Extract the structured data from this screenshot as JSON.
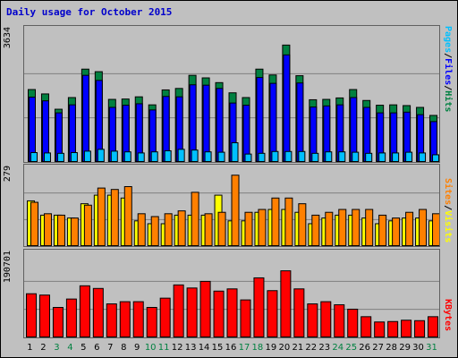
{
  "title": "Daily usage for October 2015",
  "colors": {
    "hits": "#008040",
    "files": "#0000ff",
    "pages": "#00c0ff",
    "visits": "#ffff00",
    "sites": "#ff8000",
    "kbytes": "#ff0000",
    "weekday_label": "#000000",
    "weekend_label": "#008040"
  },
  "chart_data": [
    {
      "type": "bar",
      "ymax_label": "3634",
      "ylim": [
        0,
        3634
      ],
      "legend_labels": [
        "Pages",
        "/",
        "Files",
        "/",
        "Hits"
      ],
      "categories": [
        "1",
        "2",
        "3",
        "4",
        "5",
        "6",
        "7",
        "8",
        "9",
        "10",
        "11",
        "12",
        "13",
        "14",
        "15",
        "16",
        "17",
        "18",
        "19",
        "20",
        "21",
        "22",
        "23",
        "24",
        "25",
        "26",
        "27",
        "28",
        "29",
        "30",
        "31"
      ],
      "weekend": [
        false,
        false,
        true,
        true,
        false,
        false,
        false,
        false,
        false,
        true,
        true,
        false,
        false,
        false,
        false,
        false,
        true,
        true,
        false,
        false,
        false,
        false,
        false,
        true,
        true,
        false,
        false,
        false,
        false,
        false,
        true
      ],
      "series": [
        {
          "name": "Hits",
          "values": [
            2000,
            1880,
            1460,
            1780,
            2560,
            2490,
            1730,
            1740,
            1800,
            1580,
            1990,
            2030,
            2390,
            2320,
            2190,
            1910,
            1780,
            2560,
            2400,
            3220,
            2380,
            1720,
            1730,
            1770,
            2000,
            1700,
            1570,
            1580,
            1560,
            1510,
            1290
          ]
        },
        {
          "name": "Files",
          "values": [
            1790,
            1690,
            1360,
            1580,
            2390,
            2250,
            1510,
            1570,
            1610,
            1440,
            1810,
            1800,
            2130,
            2120,
            2030,
            1630,
            1570,
            2330,
            2170,
            2950,
            2180,
            1520,
            1550,
            1580,
            1780,
            1510,
            1360,
            1360,
            1380,
            1310,
            1120
          ]
        },
        {
          "name": "Pages",
          "values": [
            270,
            260,
            250,
            270,
            310,
            360,
            310,
            290,
            260,
            290,
            320,
            360,
            340,
            290,
            280,
            540,
            230,
            250,
            300,
            300,
            300,
            250,
            290,
            290,
            280,
            250,
            260,
            260,
            280,
            260,
            210
          ]
        }
      ]
    },
    {
      "type": "bar",
      "ymax_label": "279",
      "ylim": [
        0,
        279
      ],
      "legend_labels": [
        "Sites",
        "/",
        "Visits"
      ],
      "categories": [
        "1",
        "2",
        "3",
        "4",
        "5",
        "6",
        "7",
        "8",
        "9",
        "10",
        "11",
        "12",
        "13",
        "14",
        "15",
        "16",
        "17",
        "18",
        "19",
        "20",
        "21",
        "22",
        "23",
        "24",
        "25",
        "26",
        "27",
        "28",
        "29",
        "30",
        "31"
      ],
      "series": [
        {
          "name": "Visits",
          "values": [
            160,
            110,
            110,
            100,
            150,
            180,
            180,
            170,
            90,
            80,
            80,
            110,
            110,
            110,
            180,
            90,
            90,
            120,
            130,
            130,
            120,
            80,
            100,
            110,
            110,
            100,
            80,
            90,
            100,
            100,
            90
          ]
        },
        {
          "name": "Sites",
          "values": [
            155,
            115,
            110,
            100,
            145,
            205,
            200,
            210,
            115,
            105,
            115,
            125,
            190,
            115,
            120,
            250,
            120,
            130,
            170,
            170,
            150,
            110,
            120,
            130,
            130,
            130,
            110,
            100,
            120,
            130,
            115
          ]
        }
      ]
    },
    {
      "type": "bar",
      "ymax_label": "190701",
      "ylim": [
        0,
        190701
      ],
      "legend_labels": [
        "KBytes"
      ],
      "categories": [
        "1",
        "2",
        "3",
        "4",
        "5",
        "6",
        "7",
        "8",
        "9",
        "10",
        "11",
        "12",
        "13",
        "14",
        "15",
        "16",
        "17",
        "18",
        "19",
        "20",
        "21",
        "22",
        "23",
        "24",
        "25",
        "26",
        "27",
        "28",
        "29",
        "30",
        "31"
      ],
      "series": [
        {
          "name": "KBytes",
          "values": [
            100000,
            97000,
            69000,
            88000,
            118000,
            112000,
            77000,
            82000,
            82000,
            69000,
            90000,
            120000,
            113000,
            128000,
            106000,
            111000,
            86000,
            136000,
            107000,
            152000,
            111000,
            77000,
            82000,
            75000,
            65000,
            48000,
            36000,
            37000,
            40000,
            39000,
            48000
          ]
        }
      ]
    }
  ]
}
